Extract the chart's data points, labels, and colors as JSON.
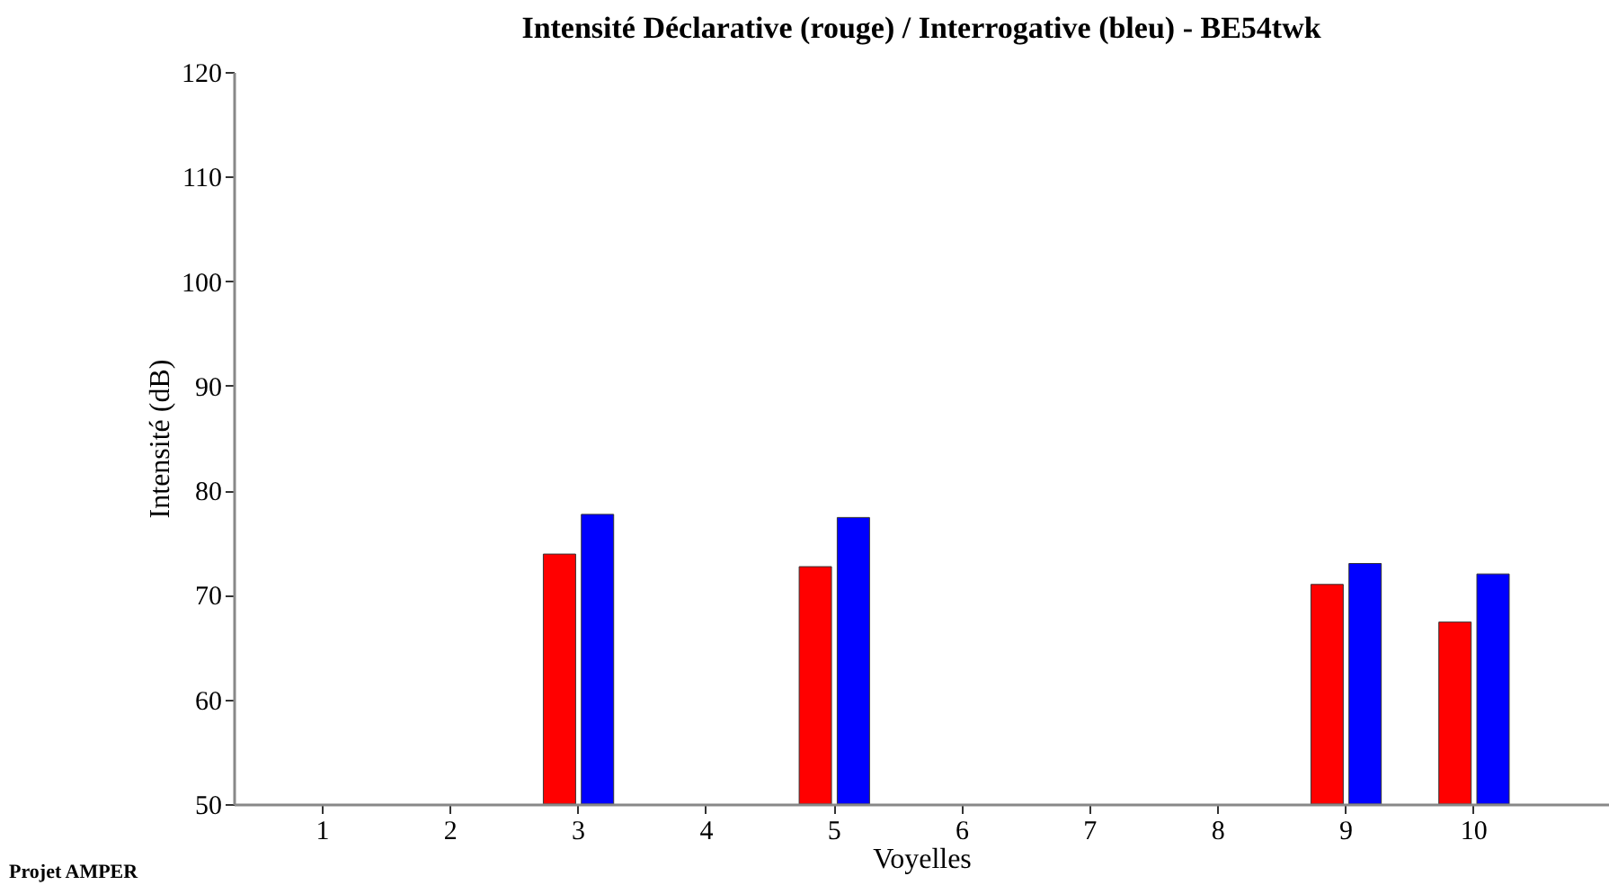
{
  "chart_data": {
    "type": "bar",
    "title": "Intensité Déclarative (rouge) / Interrogative (bleu) - BE54twk",
    "xlabel": "Voyelles",
    "ylabel": "Intensité (dB)",
    "categories": [
      "1",
      "2",
      "3",
      "4",
      "5",
      "6",
      "7",
      "8",
      "9",
      "10"
    ],
    "series": [
      {
        "color": "#ff0000",
        "values": [
          null,
          null,
          73.9,
          null,
          72.7,
          null,
          null,
          null,
          71.0,
          67.4
        ]
      },
      {
        "color": "#0000ff",
        "values": [
          null,
          null,
          77.7,
          null,
          77.4,
          null,
          null,
          null,
          73.0,
          72.0
        ]
      }
    ],
    "ylim": [
      50,
      120
    ],
    "yticks": [
      50,
      60,
      70,
      80,
      90,
      100,
      110,
      120
    ],
    "grid": false,
    "annotations": [
      "Projet AMPER"
    ]
  }
}
